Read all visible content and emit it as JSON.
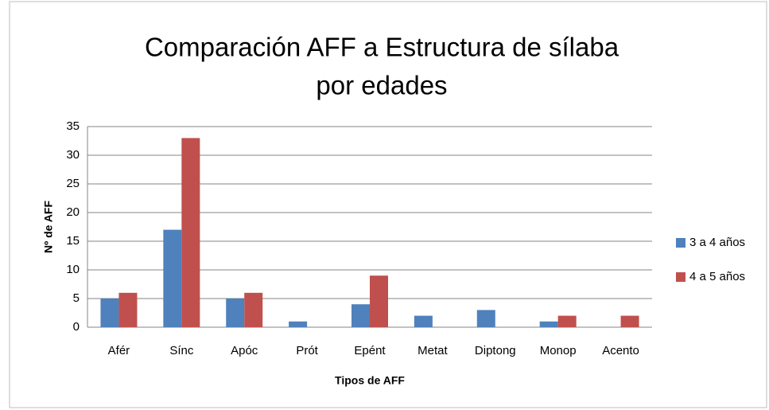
{
  "chart_data": {
    "type": "bar",
    "title": "Comparación AFF a Estructura de sílaba",
    "subtitle": "por edades",
    "x_label": "Tipos de AFF",
    "y_label": "Nº de AFF",
    "categories": [
      "Afér",
      "Sínc",
      "Apóc",
      "Prót",
      "Epént",
      "Metat",
      "Diptong",
      "Monop",
      "Acento"
    ],
    "series": [
      {
        "name": "3 a 4 años",
        "color": "#4f81bd",
        "values": [
          5,
          17,
          5,
          1,
          4,
          2,
          3,
          1,
          0
        ]
      },
      {
        "name": "4 a 5 años",
        "color": "#c0504d",
        "values": [
          6,
          33,
          6,
          0,
          9,
          0,
          0,
          2,
          2
        ]
      }
    ],
    "ylim": [
      0,
      35
    ],
    "yticks": [
      0,
      5,
      10,
      15,
      20,
      25,
      30,
      35
    ],
    "grid": true,
    "legend": "right"
  }
}
